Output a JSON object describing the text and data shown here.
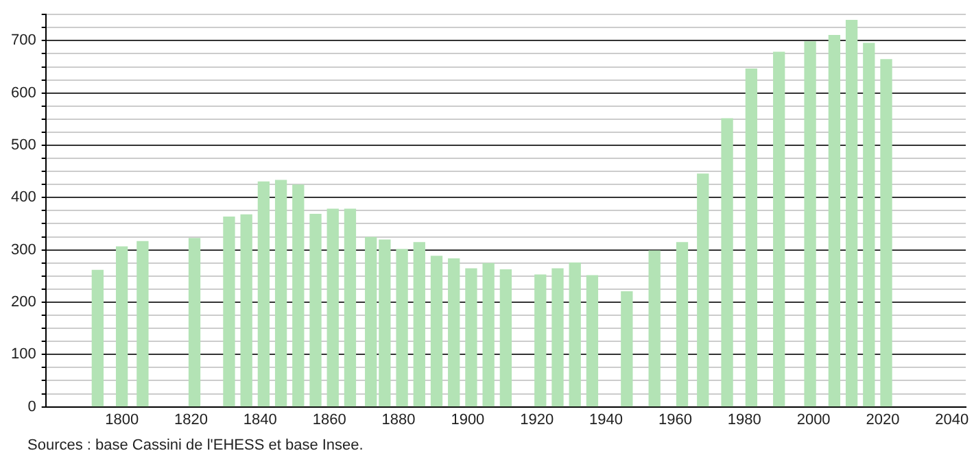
{
  "chart_data": {
    "type": "bar",
    "color": "#b3e3b5",
    "x": [
      1793,
      1800,
      1806,
      1821,
      1831,
      1836,
      1841,
      1846,
      1851,
      1856,
      1861,
      1866,
      1872,
      1876,
      1881,
      1886,
      1891,
      1896,
      1901,
      1906,
      1911,
      1921,
      1926,
      1931,
      1936,
      1946,
      1954,
      1962,
      1968,
      1975,
      1982,
      1990,
      1999,
      2006,
      2011,
      2016,
      2021
    ],
    "values": [
      261,
      306,
      316,
      322,
      363,
      367,
      430,
      433,
      424,
      368,
      378,
      378,
      324,
      319,
      301,
      314,
      288,
      283,
      264,
      274,
      262,
      252,
      264,
      275,
      251,
      220,
      298,
      314,
      445,
      551,
      646,
      678,
      698,
      710,
      739,
      695,
      664
    ],
    "xlim": [
      1778,
      2044
    ],
    "xticks": [
      1800,
      1820,
      1840,
      1860,
      1880,
      1900,
      1920,
      1940,
      1960,
      1980,
      2000,
      2020,
      2040
    ],
    "ylim": [
      0,
      750
    ],
    "yticks": [
      0,
      {
        "value": 25,
        "label": null
      },
      {
        "value": 50,
        "label": null
      },
      {
        "value": 75,
        "label": null
      },
      100,
      {
        "value": 125,
        "label": null
      },
      {
        "value": 150,
        "label": null
      },
      {
        "value": 175,
        "label": null
      },
      200,
      {
        "value": 225,
        "label": null
      },
      {
        "value": 250,
        "label": null
      },
      {
        "value": 275,
        "label": null
      },
      300,
      {
        "value": 325,
        "label": null
      },
      {
        "value": 350,
        "label": null
      },
      {
        "value": 375,
        "label": null
      },
      400,
      {
        "value": 425,
        "label": null
      },
      {
        "value": 450,
        "label": null
      },
      {
        "value": 475,
        "label": null
      },
      500,
      {
        "value": 525,
        "label": null
      },
      {
        "value": 550,
        "label": null
      },
      {
        "value": 575,
        "label": null
      },
      600,
      {
        "value": 625,
        "label": null
      },
      {
        "value": 650,
        "label": null
      },
      {
        "value": 675,
        "label": null
      },
      700,
      {
        "value": 725,
        "label": null
      },
      {
        "value": 750,
        "label": null
      }
    ],
    "grid": "y",
    "annotations": [
      "Sources : base Cassini de l'EHESS et base Insee."
    ]
  }
}
